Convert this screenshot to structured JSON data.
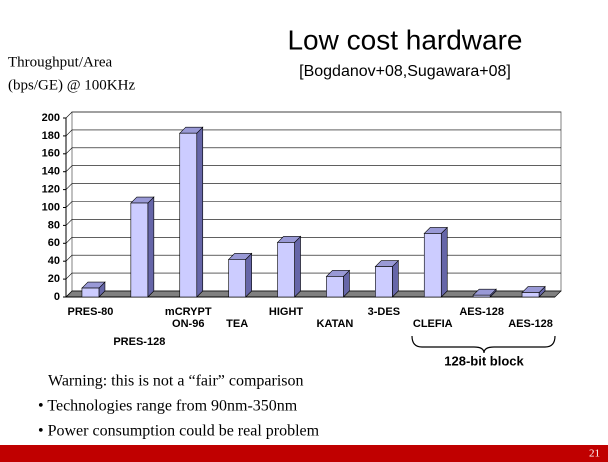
{
  "title": "Low cost hardware",
  "subtitle": "[Bogdanov+08,Sugawara+08]",
  "warning": "Warning: this is not a “fair” comparison",
  "bullets": [
    "• Technologies range from 90nm-350nm",
    "• Power consumption could be real problem"
  ],
  "bracket_label": "128-bit block",
  "page_number": "21",
  "chart_data": {
    "type": "bar",
    "y_label": [
      "Throughput/Area",
      "(bps/GE) @ 100KHz"
    ],
    "categories": [
      "PRES-80",
      "PRES-128",
      "mCRYPT ON-96",
      "TEA",
      "HIGHT",
      "KATAN",
      "3-DES",
      "CLEFIA",
      "AES-128",
      "AES-128"
    ],
    "values": [
      10,
      105,
      183,
      42,
      61,
      23,
      34,
      71,
      2,
      5
    ],
    "color": "#ccccff",
    "ylim": [
      0,
      200
    ],
    "yticks": [
      0,
      20,
      40,
      60,
      80,
      100,
      120,
      140,
      160,
      180,
      200
    ],
    "grid": true
  }
}
